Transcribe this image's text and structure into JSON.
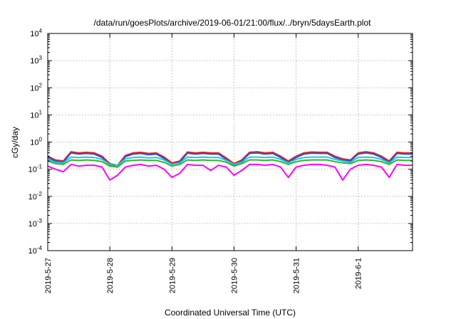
{
  "chart_data": {
    "type": "line",
    "title": "/data/run/goesPlots/archive/2019-06-01/21:00/flux/../bryn/5daysEarth.plot",
    "xlabel": "Coordinated Universal Time (UTC)",
    "ylabel": "cGy/day",
    "y_scale": "log",
    "ylim": [
      0.0001,
      10000
    ],
    "yticks": [
      {
        "exp": -4,
        "label": "10",
        "sup": "-4"
      },
      {
        "exp": -3,
        "label": "10",
        "sup": "-3"
      },
      {
        "exp": -2,
        "label": "10",
        "sup": "-2"
      },
      {
        "exp": -1,
        "label": "10",
        "sup": "-1"
      },
      {
        "exp": 0,
        "label": "10",
        "sup": "0"
      },
      {
        "exp": 1,
        "label": "10",
        "sup": "1"
      },
      {
        "exp": 2,
        "label": "10",
        "sup": "2"
      },
      {
        "exp": 3,
        "label": "10",
        "sup": "3"
      },
      {
        "exp": 4,
        "label": "10",
        "sup": "4"
      }
    ],
    "xlim": [
      "2019-05-27",
      "2019-06-01 21:00"
    ],
    "xticks": [
      "2019-5-27",
      "2019-5-28",
      "2019-5-29",
      "2019-5-30",
      "2019-5-31",
      "2019-6-1"
    ],
    "grid": true,
    "x": [
      "2019-05-27 00:00",
      "2019-05-27 03:00",
      "2019-05-27 06:00",
      "2019-05-27 09:00",
      "2019-05-27 12:00",
      "2019-05-27 15:00",
      "2019-05-27 18:00",
      "2019-05-27 21:00",
      "2019-05-28 00:00",
      "2019-05-28 03:00",
      "2019-05-28 06:00",
      "2019-05-28 09:00",
      "2019-05-28 12:00",
      "2019-05-28 15:00",
      "2019-05-28 18:00",
      "2019-05-28 21:00",
      "2019-05-29 00:00",
      "2019-05-29 03:00",
      "2019-05-29 06:00",
      "2019-05-29 09:00",
      "2019-05-29 12:00",
      "2019-05-29 15:00",
      "2019-05-29 18:00",
      "2019-05-29 21:00",
      "2019-05-30 00:00",
      "2019-05-30 03:00",
      "2019-05-30 06:00",
      "2019-05-30 09:00",
      "2019-05-30 12:00",
      "2019-05-30 15:00",
      "2019-05-30 18:00",
      "2019-05-30 21:00",
      "2019-05-31 00:00",
      "2019-05-31 03:00",
      "2019-05-31 06:00",
      "2019-05-31 09:00",
      "2019-05-31 12:00",
      "2019-05-31 15:00",
      "2019-05-31 18:00",
      "2019-05-31 21:00",
      "2019-06-01 00:00",
      "2019-06-01 03:00",
      "2019-06-01 06:00",
      "2019-06-01 09:00",
      "2019-06-01 12:00",
      "2019-06-01 15:00",
      "2019-06-01 18:00",
      "2019-06-01 21:00"
    ],
    "series": [
      {
        "color": "#e8231f",
        "values": [
          0.3,
          0.22,
          0.2,
          0.44,
          0.4,
          0.42,
          0.4,
          0.3,
          0.16,
          0.14,
          0.32,
          0.4,
          0.42,
          0.38,
          0.4,
          0.28,
          0.17,
          0.2,
          0.43,
          0.4,
          0.42,
          0.4,
          0.4,
          0.26,
          0.16,
          0.22,
          0.42,
          0.44,
          0.4,
          0.42,
          0.3,
          0.2,
          0.3,
          0.4,
          0.43,
          0.42,
          0.42,
          0.3,
          0.24,
          0.22,
          0.4,
          0.44,
          0.4,
          0.3,
          0.2,
          0.42,
          0.4,
          0.4
        ]
      },
      {
        "color": "#2d4fd8",
        "values": [
          0.27,
          0.2,
          0.18,
          0.4,
          0.36,
          0.38,
          0.36,
          0.27,
          0.14,
          0.12,
          0.29,
          0.36,
          0.38,
          0.34,
          0.36,
          0.25,
          0.15,
          0.18,
          0.39,
          0.36,
          0.38,
          0.36,
          0.36,
          0.23,
          0.14,
          0.2,
          0.38,
          0.4,
          0.36,
          0.38,
          0.27,
          0.18,
          0.27,
          0.36,
          0.39,
          0.38,
          0.38,
          0.27,
          0.22,
          0.2,
          0.36,
          0.4,
          0.36,
          0.27,
          0.18,
          0.38,
          0.36,
          0.36
        ]
      },
      {
        "color": "#18c9d8",
        "values": [
          0.23,
          0.18,
          0.17,
          0.28,
          0.27,
          0.28,
          0.27,
          0.23,
          0.15,
          0.14,
          0.24,
          0.27,
          0.28,
          0.26,
          0.27,
          0.22,
          0.15,
          0.17,
          0.28,
          0.27,
          0.28,
          0.27,
          0.27,
          0.21,
          0.15,
          0.18,
          0.28,
          0.28,
          0.27,
          0.28,
          0.23,
          0.17,
          0.23,
          0.27,
          0.28,
          0.28,
          0.28,
          0.23,
          0.2,
          0.18,
          0.27,
          0.28,
          0.27,
          0.23,
          0.17,
          0.28,
          0.27,
          0.27
        ]
      },
      {
        "color": "#2eb82e",
        "values": [
          0.2,
          0.16,
          0.15,
          0.22,
          0.21,
          0.22,
          0.21,
          0.19,
          0.13,
          0.12,
          0.2,
          0.21,
          0.22,
          0.21,
          0.21,
          0.18,
          0.13,
          0.15,
          0.22,
          0.21,
          0.22,
          0.21,
          0.21,
          0.18,
          0.13,
          0.16,
          0.22,
          0.22,
          0.21,
          0.22,
          0.19,
          0.15,
          0.19,
          0.21,
          0.22,
          0.22,
          0.22,
          0.19,
          0.17,
          0.16,
          0.21,
          0.22,
          0.21,
          0.19,
          0.15,
          0.22,
          0.21,
          0.21
        ]
      },
      {
        "color": "#ff00ff",
        "values": [
          0.13,
          0.1,
          0.08,
          0.15,
          0.13,
          0.14,
          0.14,
          0.12,
          0.04,
          0.06,
          0.12,
          0.14,
          0.15,
          0.13,
          0.14,
          0.1,
          0.05,
          0.07,
          0.15,
          0.14,
          0.14,
          0.09,
          0.14,
          0.12,
          0.06,
          0.09,
          0.15,
          0.15,
          0.14,
          0.15,
          0.12,
          0.05,
          0.12,
          0.14,
          0.15,
          0.15,
          0.14,
          0.12,
          0.04,
          0.1,
          0.14,
          0.15,
          0.14,
          0.12,
          0.05,
          0.15,
          0.14,
          0.14
        ]
      }
    ]
  }
}
